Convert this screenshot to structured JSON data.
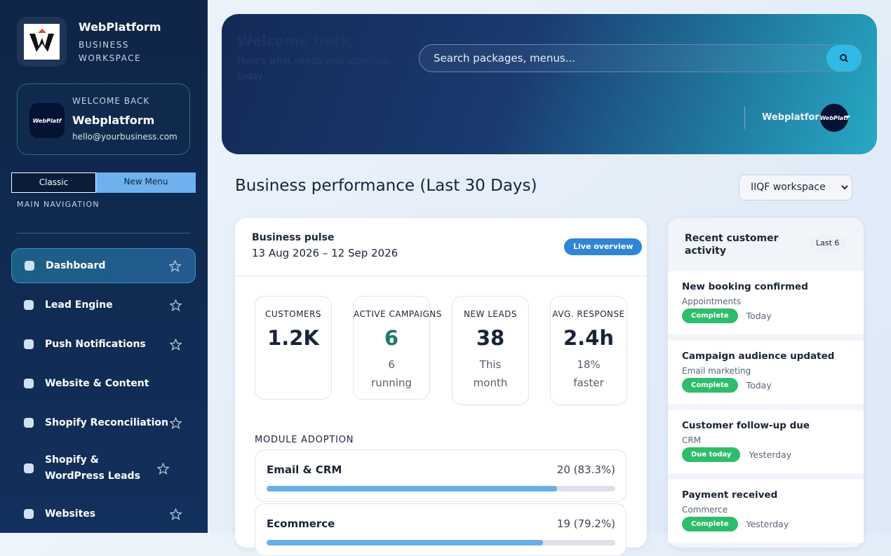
{
  "sidebar": {
    "brand": {
      "title": "WebPlatform",
      "subtitle": "BUSINESS WORKSPACE"
    },
    "welcome": {
      "label": "WELCOME BACK",
      "name": "Webplatform",
      "email": "hello@yourbusiness.com",
      "avatar_text": "WebPlatf"
    },
    "toggle": [
      "Classic",
      "New Menu"
    ],
    "nav_heading": "MAIN NAVIGATION",
    "nav": [
      {
        "label": "Dashboard",
        "star": true,
        "active": true
      },
      {
        "label": "Lead Engine",
        "star": true
      },
      {
        "label": "Push Notifications",
        "star": true
      },
      {
        "label": "Website & Content",
        "star": false
      },
      {
        "label": "Shopify Reconciliation",
        "star": true
      },
      {
        "label": "Shopify & WordPress Leads",
        "star": true
      },
      {
        "label": "Websites",
        "star": true
      }
    ]
  },
  "header": {
    "title": "Welcome back",
    "subtitle": "Here's what needs your attention today",
    "search_placeholder": "Search packages, menus...",
    "user": "Webplatform",
    "avatar_text": "WebPlatf"
  },
  "section": {
    "title": "Business performance (Last 30 Days)",
    "workspace": "IIQF workspace"
  },
  "pulse": {
    "title": "Business pulse",
    "dates": "13 Aug 2026 – 12 Sep 2026",
    "badge": "Live overview",
    "stats": [
      {
        "label": "CUSTOMERS",
        "value": "1.2K"
      },
      {
        "label": "ACTIVE CAMPAIGNS",
        "value": "6",
        "sub": "6 running",
        "color": "#1f7a6b"
      },
      {
        "label": "NEW LEADS",
        "value": "38",
        "sub": "This month"
      },
      {
        "label": "AVG. RESPONSE",
        "value": "2.4h",
        "sub": "18% faster"
      }
    ],
    "modules_heading": "MODULE ADOPTION",
    "modules": [
      {
        "name": "Email & CRM",
        "count": 20,
        "percent": 83.3,
        "label": "20 (83.3%)"
      },
      {
        "name": "Ecommerce",
        "count": 19,
        "percent": 79.2,
        "label": "19 (79.2%)"
      }
    ]
  },
  "activity": {
    "title": "Recent customer activity",
    "badge": "Last 6",
    "items": [
      {
        "title": "New booking confirmed",
        "category": "Appointments",
        "status": "Complete",
        "time": "Today"
      },
      {
        "title": "Campaign audience updated",
        "category": "Email marketing",
        "status": "Complete",
        "time": "Today"
      },
      {
        "title": "Customer follow-up due",
        "category": "CRM",
        "status": "Due today",
        "time": "Yesterday"
      },
      {
        "title": "Payment received",
        "category": "Commerce",
        "status": "Complete",
        "time": "Yesterday"
      }
    ]
  }
}
